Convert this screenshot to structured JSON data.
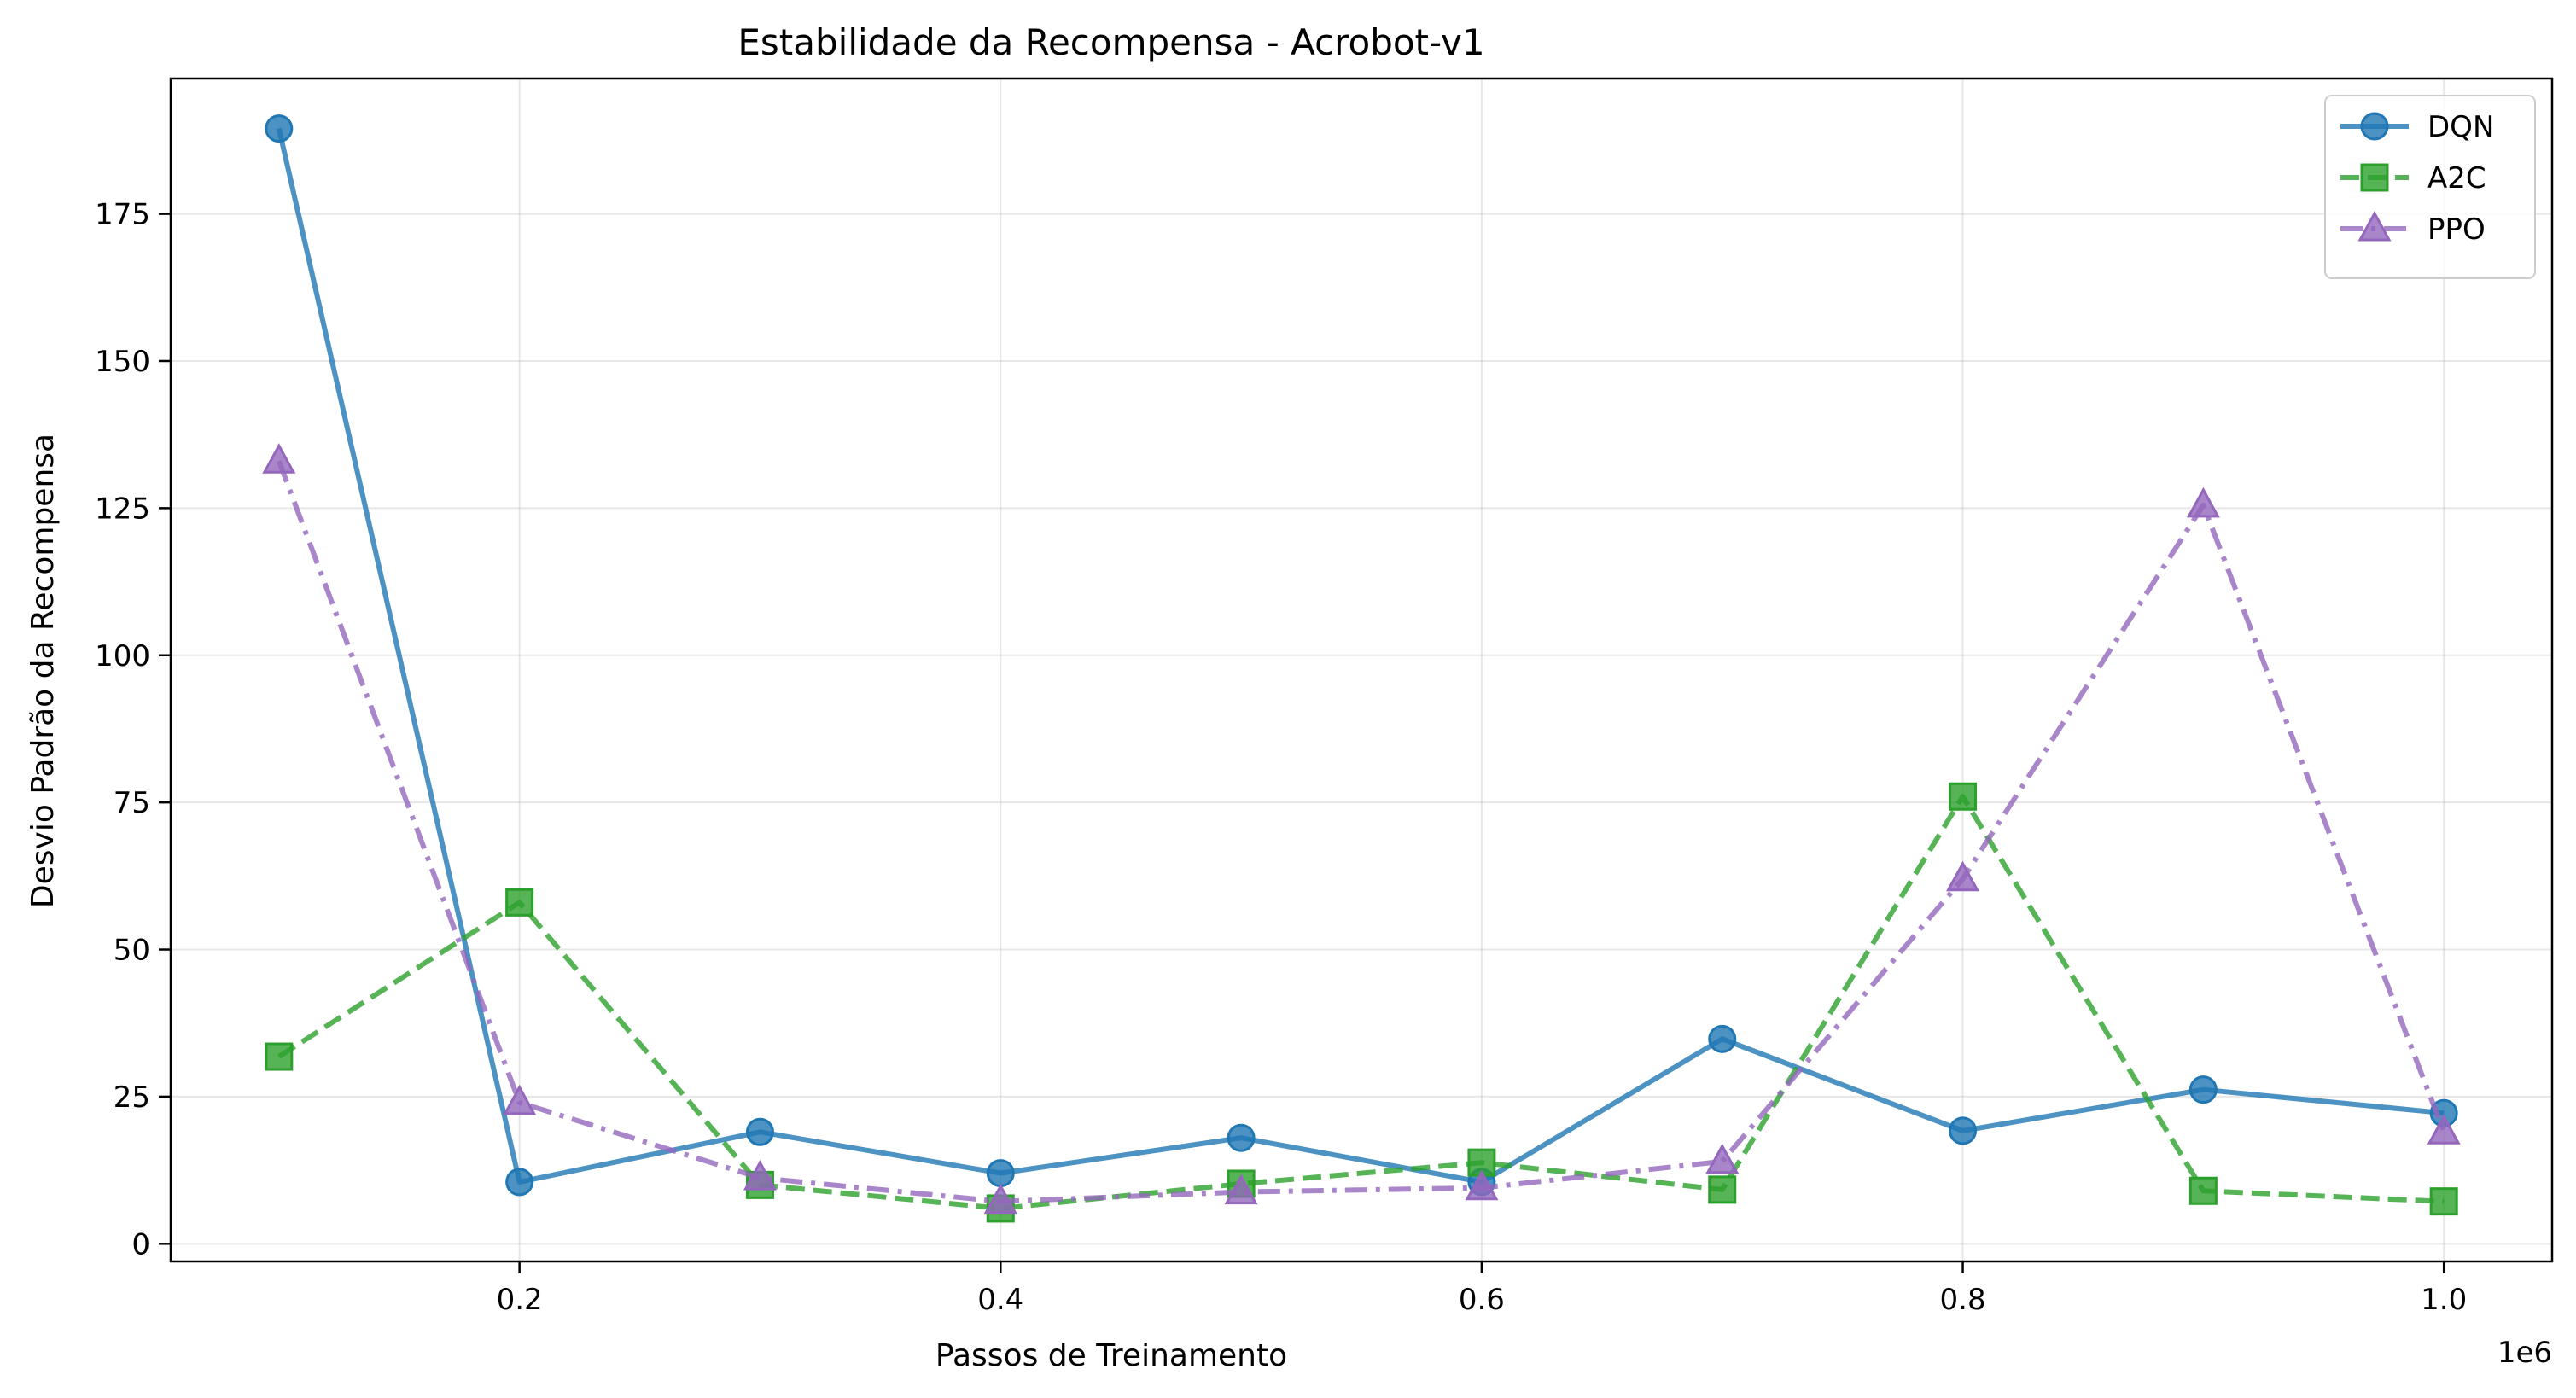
{
  "chart_data": {
    "type": "line",
    "title": "Estabilidade da Recompensa - Acrobot-v1",
    "xlabel": "Passos de Treinamento",
    "ylabel": "Desvio Padrão da Recompensa",
    "x_offset_label": "1e6",
    "x": [
      0.1,
      0.2,
      0.3,
      0.4,
      0.5,
      0.6,
      0.7,
      0.8,
      0.9,
      1.0
    ],
    "xlim": [
      0.055,
      1.045
    ],
    "ylim": [
      -3,
      198
    ],
    "xticks": [
      0.2,
      0.4,
      0.6,
      0.8,
      1.0
    ],
    "xtick_labels": [
      "0.2",
      "0.4",
      "0.6",
      "0.8",
      "1.0"
    ],
    "yticks": [
      0,
      25,
      50,
      75,
      100,
      125,
      150,
      175
    ],
    "ytick_labels": [
      "0",
      "25",
      "50",
      "75",
      "100",
      "125",
      "150",
      "175"
    ],
    "grid": true,
    "legend_position": "top-right",
    "series": [
      {
        "name": "DQN",
        "color": "#1f77b4",
        "marker": "circle",
        "linestyle": "solid",
        "values": [
          189.5,
          10.5,
          19.0,
          12.0,
          18.0,
          10.5,
          34.8,
          19.2,
          26.2,
          22.2
        ]
      },
      {
        "name": "A2C",
        "color": "#2ca02c",
        "marker": "square",
        "linestyle": "dashed",
        "values": [
          31.8,
          58.0,
          10.0,
          6.0,
          10.2,
          13.8,
          9.2,
          76.0,
          9.0,
          7.2
        ]
      },
      {
        "name": "PPO",
        "color": "#9467bd",
        "marker": "triangle",
        "linestyle": "dashdot",
        "values": [
          133.0,
          24.0,
          11.2,
          7.2,
          8.8,
          9.5,
          14.0,
          62.0,
          125.5,
          19.0
        ]
      }
    ]
  }
}
